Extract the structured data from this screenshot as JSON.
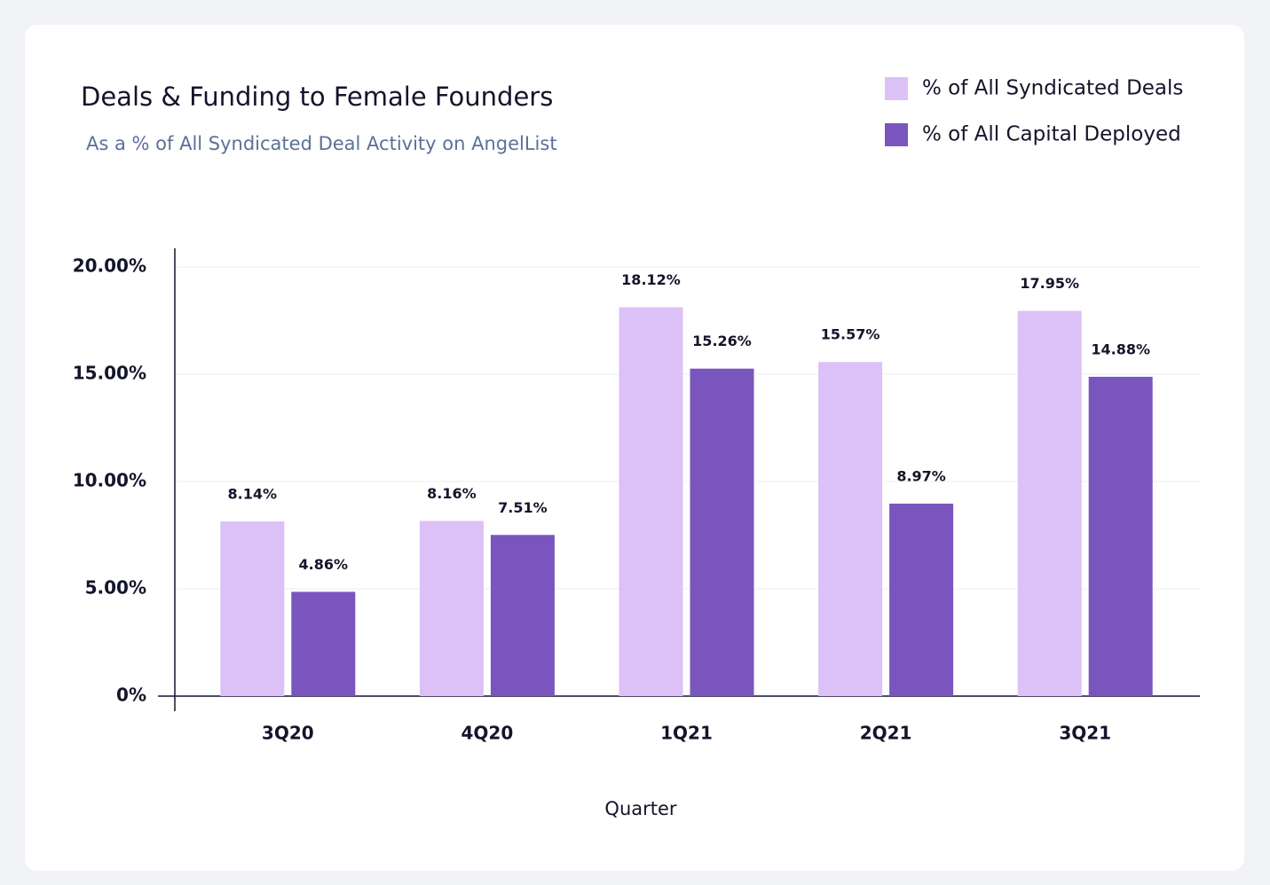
{
  "chart_data": {
    "type": "bar",
    "title": "Deals & Funding to Female Founders",
    "subtitle": "As a % of All Syndicated Deal Activity on AngelList",
    "x_label": "Quarter",
    "categories": [
      "3Q20",
      "4Q20",
      "1Q21",
      "2Q21",
      "3Q21"
    ],
    "series": [
      {
        "name": "% of All Syndicated Deals",
        "color": "#dcc1f6",
        "values": [
          8.14,
          8.16,
          18.12,
          15.57,
          17.95
        ],
        "value_labels": [
          "8.14%",
          "8.16%",
          "18.12%",
          "15.57%",
          "17.95%"
        ]
      },
      {
        "name": "% of All Capital Deployed",
        "color": "#7a55bd",
        "values": [
          4.86,
          7.51,
          15.26,
          8.97,
          14.88
        ],
        "value_labels": [
          "4.86%",
          "7.51%",
          "15.26%",
          "8.97%",
          "14.88%"
        ]
      }
    ],
    "ylim": [
      0,
      20
    ],
    "yticks": [
      {
        "value": 0,
        "label": "0%"
      },
      {
        "value": 5,
        "label": "5.00%"
      },
      {
        "value": 10,
        "label": "10.00%"
      },
      {
        "value": 15,
        "label": "15.00%"
      },
      {
        "value": 20,
        "label": "20.00%"
      }
    ],
    "grid": true,
    "legend": "top-right"
  }
}
